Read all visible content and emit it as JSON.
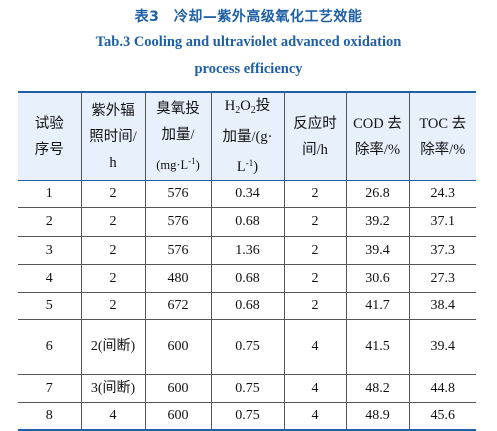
{
  "caption": {
    "cn": "表3　冷却—紫外高级氧化工艺效能",
    "en_line1": "Tab.3    Cooling  and  ultraviolet  advanced  oxidation",
    "en_line2": "process  efficiency"
  },
  "table": {
    "headers": {
      "col1": {
        "l1": "试验",
        "l2": "序号"
      },
      "col2": {
        "l1": "紫外辐",
        "l2": "照时间/",
        "l3": "h"
      },
      "col3": {
        "l1": "臭氧投",
        "l2": "加量/",
        "l3_a": "(mg·L",
        "l3_sup": "-1",
        "l3_b": ")"
      },
      "col4": {
        "l1_a": "H",
        "l1_sub1": "2",
        "l1_b": "O",
        "l1_sub2": "2",
        "l1_c": "投",
        "l2": "加量/(g·",
        "l3_a": "L",
        "l3_sup": "-1",
        "l3_b": ")"
      },
      "col5": {
        "l1": "反应时",
        "l2": "间/h"
      },
      "col6": {
        "l1": "COD 去",
        "l2": "除率/%"
      },
      "col7": {
        "l1": "TOC 去",
        "l2": "除率/%"
      }
    },
    "rows": [
      [
        "1",
        "2",
        "576",
        "0.34",
        "2",
        "26.8",
        "24.3"
      ],
      [
        "2",
        "2",
        "576",
        "0.68",
        "2",
        "39.2",
        "37.1"
      ],
      [
        "3",
        "2",
        "576",
        "1.36",
        "2",
        "39.4",
        "37.3"
      ],
      [
        "4",
        "2",
        "480",
        "0.68",
        "2",
        "30.6",
        "27.3"
      ],
      [
        "5",
        "2",
        "672",
        "0.68",
        "2",
        "41.7",
        "38.4"
      ],
      [
        "6",
        "2(间断)",
        "600",
        "0.75",
        "4",
        "41.5",
        "39.4"
      ],
      [
        "7",
        "3(间断)",
        "600",
        "0.75",
        "4",
        "48.2",
        "44.8"
      ],
      [
        "8",
        "4",
        "600",
        "0.75",
        "4",
        "48.9",
        "45.6"
      ]
    ]
  }
}
